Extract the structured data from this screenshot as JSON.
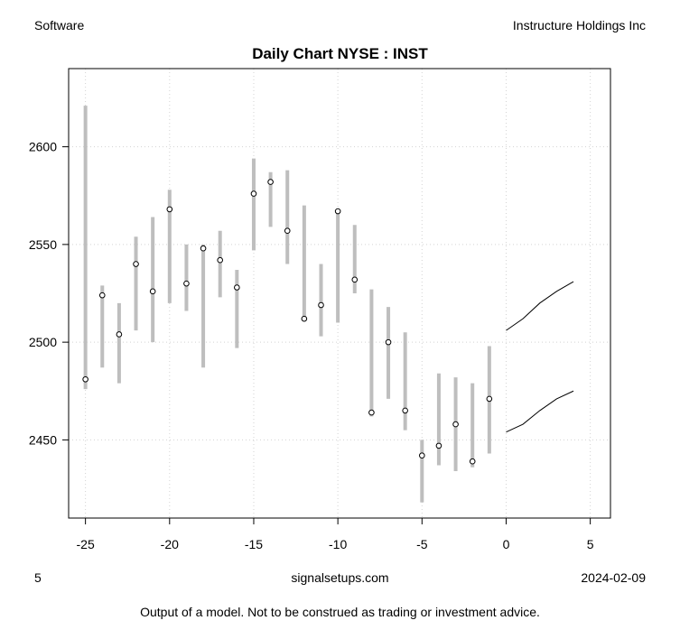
{
  "header": {
    "left": "Software",
    "right": "Instructure Holdings Inc",
    "title": "Daily Chart NYSE : INST"
  },
  "footer": {
    "left": "5",
    "center": "signalsetups.com",
    "right": "2024-02-09",
    "disclaimer": "Output of a model.  Not to be construed as trading or investment advice."
  },
  "chart_data": {
    "type": "line",
    "title": "Daily Chart NYSE : INST",
    "xlim": [
      -26,
      6.2
    ],
    "ylim": [
      2410,
      2640
    ],
    "x_ticks": [
      -25,
      -20,
      -15,
      -10,
      -5,
      0,
      5
    ],
    "y_ticks": [
      2450,
      2500,
      2550,
      2600
    ],
    "grid": true,
    "colors": {
      "range_bar": "#bebebe",
      "close_point": "#000000",
      "forecast_line": "#000000"
    },
    "ranges": [
      {
        "x": -25,
        "low": 2476,
        "high": 2621,
        "close": 2481
      },
      {
        "x": -24,
        "low": 2487,
        "high": 2529,
        "close": 2524
      },
      {
        "x": -23,
        "low": 2479,
        "high": 2520,
        "close": 2504
      },
      {
        "x": -22,
        "low": 2506,
        "high": 2554,
        "close": 2540
      },
      {
        "x": -21,
        "low": 2500,
        "high": 2564,
        "close": 2526
      },
      {
        "x": -20,
        "low": 2520,
        "high": 2578,
        "close": 2568
      },
      {
        "x": -19,
        "low": 2516,
        "high": 2550,
        "close": 2530
      },
      {
        "x": -18,
        "low": 2487,
        "high": 2550,
        "close": 2548
      },
      {
        "x": -17,
        "low": 2523,
        "high": 2557,
        "close": 2542
      },
      {
        "x": -16,
        "low": 2497,
        "high": 2537,
        "close": 2528
      },
      {
        "x": -15,
        "low": 2547,
        "high": 2594,
        "close": 2576
      },
      {
        "x": -14,
        "low": 2559,
        "high": 2587,
        "close": 2582
      },
      {
        "x": -13,
        "low": 2540,
        "high": 2588,
        "close": 2557
      },
      {
        "x": -12,
        "low": 2512,
        "high": 2570,
        "close": 2512
      },
      {
        "x": -11,
        "low": 2503,
        "high": 2540,
        "close": 2519
      },
      {
        "x": -10,
        "low": 2510,
        "high": 2568,
        "close": 2567
      },
      {
        "x": -9,
        "low": 2525,
        "high": 2560,
        "close": 2532
      },
      {
        "x": -8,
        "low": 2462,
        "high": 2527,
        "close": 2464
      },
      {
        "x": -7,
        "low": 2471,
        "high": 2518,
        "close": 2500
      },
      {
        "x": -6,
        "low": 2455,
        "high": 2505,
        "close": 2465
      },
      {
        "x": -5,
        "low": 2418,
        "high": 2450,
        "close": 2442
      },
      {
        "x": -4,
        "low": 2437,
        "high": 2484,
        "close": 2447
      },
      {
        "x": -3,
        "low": 2434,
        "high": 2482,
        "close": 2458
      },
      {
        "x": -2,
        "low": 2436,
        "high": 2479,
        "close": 2439
      },
      {
        "x": -1,
        "low": 2443,
        "high": 2498,
        "close": 2471
      }
    ],
    "series": [
      {
        "x": [
          0,
          1,
          2,
          3,
          4
        ],
        "values": [
          2506,
          2512,
          2520,
          2526,
          2531
        ]
      },
      {
        "x": [
          0,
          1,
          2,
          3,
          4
        ],
        "values": [
          2454,
          2458,
          2465,
          2471,
          2475
        ]
      }
    ]
  }
}
